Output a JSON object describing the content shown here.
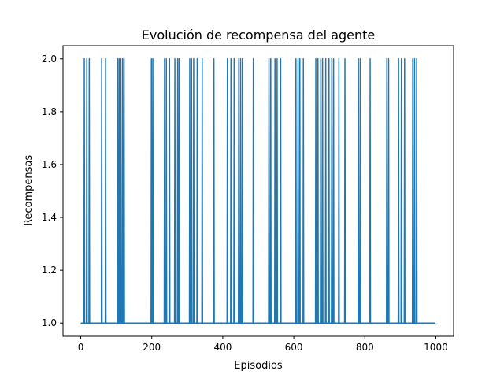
{
  "chart_data": {
    "type": "line",
    "title": "Evolución de recompensa del agente",
    "xlabel": "Episodios",
    "ylabel": "Recompensas",
    "xlim": [
      -50,
      1050
    ],
    "ylim": [
      0.95,
      2.05
    ],
    "xticks": [
      0,
      200,
      400,
      600,
      800,
      1000
    ],
    "yticks": [
      1.0,
      1.2,
      1.4,
      1.6,
      1.8,
      2.0
    ],
    "xtick_labels": [
      "0",
      "200",
      "400",
      "600",
      "800",
      "1000"
    ],
    "ytick_labels": [
      "1.0",
      "1.2",
      "1.4",
      "1.6",
      "1.8",
      "2.0"
    ],
    "grid": false,
    "series": [
      {
        "color": "#1f77b4",
        "episodes_total": 1000,
        "base_value": 1,
        "peak_value": 2,
        "peak_episodes": [
          10,
          17,
          24,
          59,
          70,
          104,
          108,
          113,
          118,
          122,
          199,
          203,
          236,
          241,
          250,
          265,
          273,
          277,
          307,
          312,
          318,
          328,
          342,
          375,
          413,
          423,
          432,
          445,
          450,
          455,
          486,
          530,
          535,
          547,
          553,
          563,
          606,
          612,
          617,
          627,
          662,
          668,
          676,
          681,
          690,
          699,
          707,
          712,
          727,
          744,
          782,
          787,
          815,
          862,
          867,
          895,
          903,
          912,
          935,
          940,
          946
        ]
      }
    ]
  }
}
